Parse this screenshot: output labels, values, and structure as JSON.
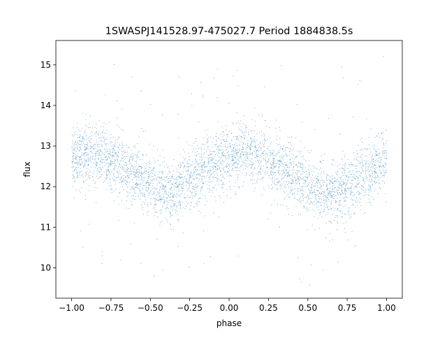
{
  "chart_data": {
    "type": "scatter",
    "title": "1SWASPJ141528.97-475027.7 Period 1884838.5s",
    "xlabel": "phase",
    "ylabel": "flux",
    "xlim": [
      -1.1,
      1.1
    ],
    "ylim": [
      9.25,
      15.6
    ],
    "xticks": [
      -1.0,
      -0.75,
      -0.5,
      -0.25,
      0.0,
      0.25,
      0.5,
      0.75,
      1.0
    ],
    "xtick_labels": [
      "−1.00",
      "−0.75",
      "−0.50",
      "−0.25",
      "0.00",
      "0.25",
      "0.50",
      "0.75",
      "1.00"
    ],
    "yticks": [
      10,
      11,
      12,
      13,
      14,
      15
    ],
    "ytick_labels": [
      "10",
      "11",
      "12",
      "13",
      "14",
      "15"
    ],
    "grid": false,
    "marker_color": "#1f77b4",
    "series": [
      {
        "trend": {
          "x": [
            -1.0,
            -0.875,
            -0.75,
            -0.625,
            -0.5,
            -0.375,
            -0.25,
            -0.125,
            0.0,
            0.125,
            0.25,
            0.375,
            0.5,
            0.625,
            0.75,
            0.875,
            1.0
          ],
          "y": [
            12.7,
            12.8,
            12.7,
            12.4,
            12.0,
            11.8,
            12.2,
            12.5,
            12.75,
            12.85,
            12.65,
            12.35,
            12.05,
            11.8,
            12.0,
            12.35,
            12.65
          ]
        },
        "scatter_sigma": 0.38,
        "point_count": 9000
      }
    ]
  }
}
